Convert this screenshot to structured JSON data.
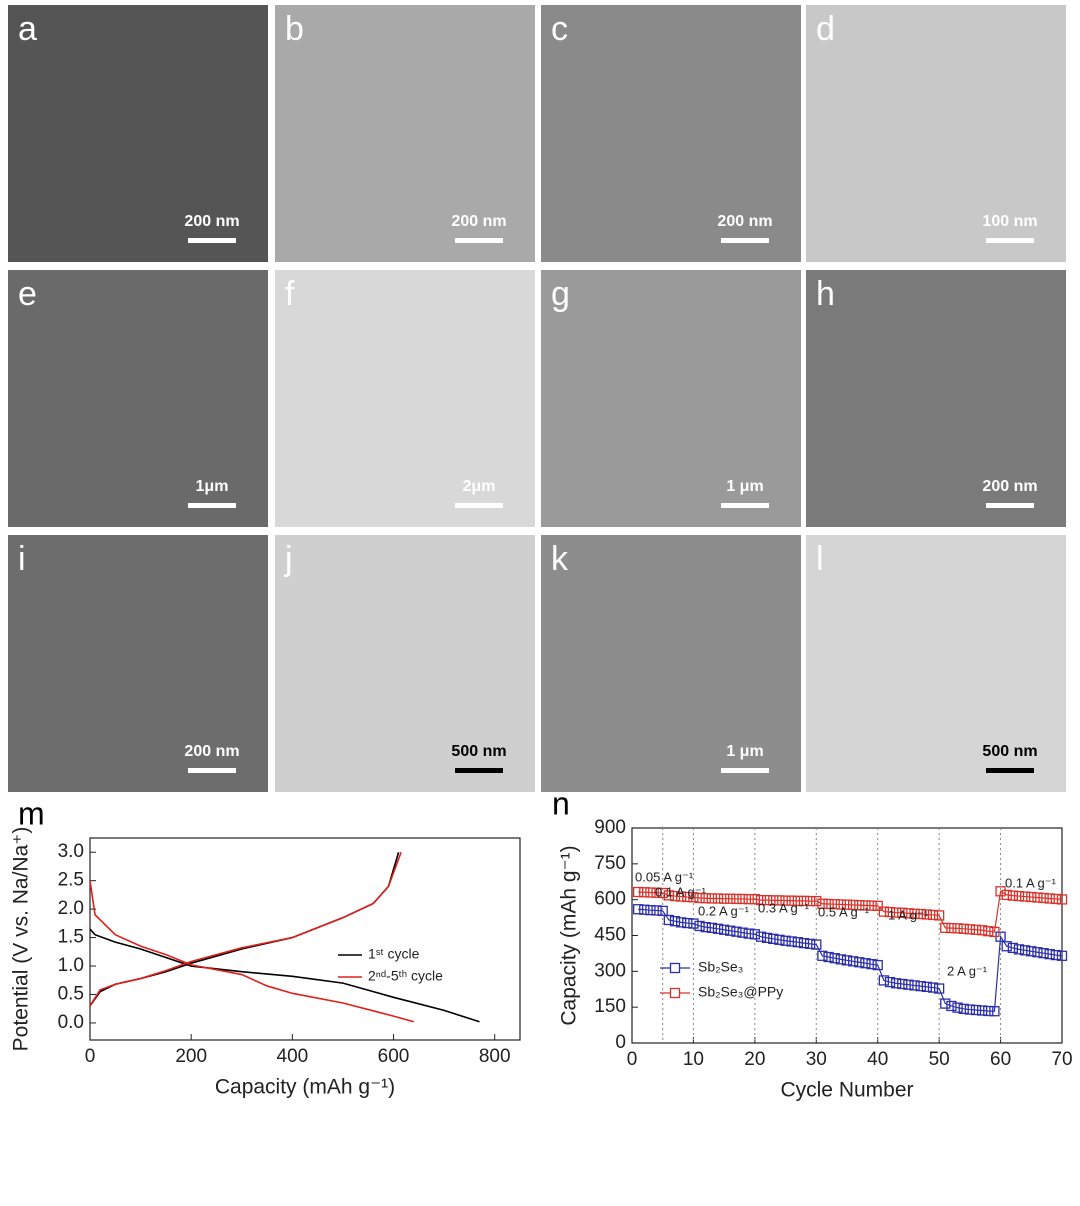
{
  "micrographs": [
    {
      "letter": "a",
      "scale_bar": "200 nm"
    },
    {
      "letter": "b",
      "scale_bar": "200 nm"
    },
    {
      "letter": "c",
      "scale_bar": "200 nm"
    },
    {
      "letter": "d",
      "scale_bar": "100 nm"
    },
    {
      "letter": "e",
      "scale_bar": "1μm"
    },
    {
      "letter": "f",
      "scale_bar": "2μm"
    },
    {
      "letter": "g",
      "scale_bar": "1 μm"
    },
    {
      "letter": "h",
      "scale_bar": "200 nm"
    },
    {
      "letter": "i",
      "scale_bar": "200 nm"
    },
    {
      "letter": "j",
      "scale_bar": "500 nm"
    },
    {
      "letter": "k",
      "scale_bar": "1 μm"
    },
    {
      "letter": "l",
      "scale_bar": "500 nm"
    }
  ],
  "chart_data": [
    {
      "type": "line",
      "label": "m",
      "xlabel": "Capacity (mAh g⁻¹)",
      "ylabel": "Potential (V vs. Na/Na⁺)",
      "xlim": [
        0,
        850
      ],
      "ylim": [
        -0.3,
        3.25
      ],
      "xticks": [
        0,
        200,
        400,
        600,
        800
      ],
      "yticks": [
        {
          "value": 0,
          "label": "0.0"
        },
        0.5,
        {
          "value": 1,
          "label": "1.0"
        },
        1.5,
        {
          "value": 2,
          "label": "2.0"
        },
        2.5,
        {
          "value": 3,
          "label": "3.0"
        }
      ],
      "series": [
        {
          "name": "1ˢᵗ cycle",
          "color": "#000000",
          "curves": [
            {
              "x": [
                0,
                10,
                50,
                100,
                150,
                200,
                300,
                400,
                500,
                600,
                700,
                770
              ],
              "values": [
                1.65,
                1.55,
                1.42,
                1.3,
                1.15,
                1.0,
                0.9,
                0.82,
                0.7,
                0.45,
                0.22,
                0.02
              ]
            },
            {
              "x": [
                0,
                20,
                50,
                100,
                150,
                200,
                300,
                400,
                500,
                560,
                590,
                610
              ],
              "values": [
                0.3,
                0.55,
                0.68,
                0.78,
                0.9,
                1.05,
                1.3,
                1.5,
                1.85,
                2.1,
                2.4,
                3.0
              ]
            }
          ]
        },
        {
          "name": "2ⁿᵈ-5ᵗʰ cycle",
          "color": "#e0201b",
          "curves": [
            {
              "x": [
                0,
                10,
                50,
                100,
                150,
                200,
                300,
                350,
                400,
                500,
                600,
                640
              ],
              "values": [
                2.5,
                1.9,
                1.55,
                1.35,
                1.2,
                1.02,
                0.85,
                0.65,
                0.52,
                0.35,
                0.12,
                0.02
              ]
            },
            {
              "x": [
                0,
                20,
                50,
                100,
                150,
                200,
                300,
                400,
                500,
                560,
                590,
                615
              ],
              "values": [
                0.3,
                0.58,
                0.68,
                0.78,
                0.92,
                1.08,
                1.32,
                1.5,
                1.85,
                2.1,
                2.4,
                3.0
              ]
            }
          ]
        }
      ]
    },
    {
      "type": "scatter-line",
      "label": "n",
      "xlabel": "Cycle Number",
      "ylabel": "Capacity (mAh g⁻¹)",
      "xlim": [
        0,
        70
      ],
      "ylim": [
        0,
        900
      ],
      "xticks": [
        0,
        10,
        20,
        30,
        40,
        50,
        60,
        70
      ],
      "yticks": [
        0,
        150,
        300,
        450,
        600,
        750,
        900
      ],
      "vlines": [
        5,
        10,
        20,
        30,
        40,
        50,
        60
      ],
      "annotations": [
        "0.05 A g⁻¹",
        "0.1 A g⁻¹",
        "0.2 A g⁻¹",
        "0.3 A g⁻¹",
        "0.5 A g⁻¹",
        "1 A g⁻¹",
        "2 A g⁻¹",
        "0.1 A g⁻¹"
      ],
      "x": [
        1,
        2,
        3,
        4,
        5,
        6,
        7,
        8,
        9,
        10,
        11,
        12,
        13,
        14,
        15,
        16,
        17,
        18,
        19,
        20,
        21,
        22,
        23,
        24,
        25,
        26,
        27,
        28,
        29,
        30,
        31,
        32,
        33,
        34,
        35,
        36,
        37,
        38,
        39,
        40,
        41,
        42,
        43,
        44,
        45,
        46,
        47,
        48,
        49,
        50,
        51,
        52,
        53,
        54,
        55,
        56,
        57,
        58,
        59,
        60,
        61,
        62,
        63,
        64,
        65,
        66,
        67,
        68,
        69,
        70
      ],
      "series": [
        {
          "name": "Sb₂Se₃",
          "color": "#2b2fa8",
          "values": [
            560,
            558,
            556,
            555,
            553,
            515,
            510,
            505,
            502,
            500,
            490,
            485,
            482,
            478,
            474,
            470,
            466,
            462,
            458,
            455,
            445,
            440,
            436,
            432,
            428,
            425,
            422,
            418,
            415,
            412,
            365,
            360,
            355,
            350,
            346,
            342,
            338,
            334,
            330,
            326,
            262,
            255,
            250,
            247,
            244,
            241,
            238,
            235,
            232,
            228,
            165,
            155,
            148,
            143,
            140,
            138,
            136,
            134,
            133,
            445,
            405,
            398,
            392,
            388,
            384,
            380,
            376,
            372,
            368,
            365
          ]
        },
        {
          "name": "Sb₂Se₃@PPy",
          "color": "#d9322a",
          "values": [
            632,
            631,
            630,
            629,
            628,
            618,
            615,
            613,
            611,
            610,
            607,
            606,
            605,
            605,
            604,
            604,
            603,
            603,
            602,
            602,
            598,
            598,
            597,
            597,
            596,
            596,
            595,
            595,
            594,
            594,
            583,
            582,
            581,
            580,
            579,
            578,
            577,
            576,
            575,
            574,
            550,
            548,
            546,
            545,
            543,
            541,
            540,
            538,
            536,
            534,
            482,
            481,
            480,
            478,
            476,
            474,
            472,
            468,
            465,
            635,
            620,
            617,
            615,
            613,
            611,
            609,
            607,
            605,
            603,
            601
          ]
        }
      ]
    }
  ]
}
